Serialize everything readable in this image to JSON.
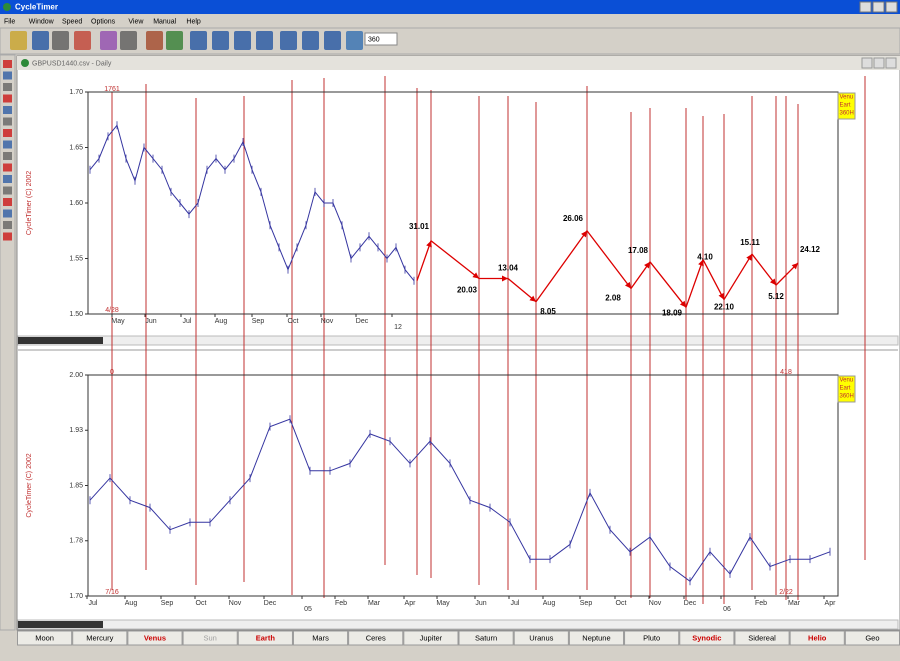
{
  "app": {
    "title": "CycleTimer",
    "menu": [
      "File",
      "Window",
      "Speed",
      "Options",
      "View",
      "Manual",
      "Help"
    ],
    "toolbar_input": "360",
    "tabs": [
      {
        "label": "Moon",
        "color": "#000000"
      },
      {
        "label": "Mercury",
        "color": "#000000"
      },
      {
        "label": "Venus",
        "color": "#cc0000"
      },
      {
        "label": "Sun",
        "color": "#a0a0a0"
      },
      {
        "label": "Earth",
        "color": "#cc0000"
      },
      {
        "label": "Mars",
        "color": "#000000"
      },
      {
        "label": "Ceres",
        "color": "#000000"
      },
      {
        "label": "Jupiter",
        "color": "#000000"
      },
      {
        "label": "Saturn",
        "color": "#000000"
      },
      {
        "label": "Uranus",
        "color": "#000000"
      },
      {
        "label": "Neptune",
        "color": "#000000"
      },
      {
        "label": "Pluto",
        "color": "#000000"
      },
      {
        "label": "Synodic",
        "color": "#cc0000"
      },
      {
        "label": "Sidereal",
        "color": "#000000"
      },
      {
        "label": "Helio",
        "color": "#cc0000"
      },
      {
        "label": "Geo",
        "color": "#000000"
      }
    ]
  },
  "window": {
    "title": "GBPUSD1440.csv - Daily"
  },
  "chart_data": [
    {
      "type": "line",
      "watermark": "CycleTimer (C) 2002",
      "legend_box": [
        "Venu",
        "Eart",
        "360H"
      ],
      "markers": [
        {
          "top": "1761",
          "bottom": "4/28"
        }
      ],
      "x_labels": [
        "May",
        "Jun",
        "Jul",
        "Aug",
        "Sep",
        "Oct",
        "Nov",
        "Dec",
        "12"
      ],
      "color": "#3535a0",
      "values": [
        1.63,
        1.64,
        1.66,
        1.67,
        1.64,
        1.62,
        1.65,
        1.64,
        1.63,
        1.61,
        1.6,
        1.59,
        1.6,
        1.63,
        1.64,
        1.63,
        1.64,
        1.655,
        1.63,
        1.61,
        1.58,
        1.56,
        1.54,
        1.56,
        1.58,
        1.61,
        1.6,
        1.6,
        1.58,
        1.55,
        1.56,
        1.57,
        1.56,
        1.55,
        1.56,
        1.54,
        1.53
      ],
      "ylim": [
        1.5,
        1.7
      ],
      "yticks": [
        {
          "value": 1.5,
          "label": "1.50"
        },
        1.55,
        {
          "value": 1.6,
          "label": "1.60"
        },
        1.65,
        {
          "value": 1.7,
          "label": "1.70"
        }
      ],
      "annotations": [
        {
          "label": "31.01",
          "value": 1.566
        },
        {
          "label": "20.03",
          "value": 1.532
        },
        {
          "label": "13.04",
          "value": 1.532
        },
        {
          "label": "8.05",
          "value": 1.511
        },
        {
          "label": "26.06",
          "value": 1.575
        },
        {
          "label": "2.08",
          "value": 1.523
        },
        {
          "label": "17.08",
          "value": 1.547
        },
        {
          "label": "18.09",
          "value": 1.506
        },
        {
          "label": "4.10",
          "value": 1.549
        },
        {
          "label": "22.10",
          "value": 1.513
        },
        {
          "label": "15.11",
          "value": 1.554
        },
        {
          "label": "5.12",
          "value": 1.526
        },
        {
          "label": "24.12",
          "value": 1.546
        }
      ],
      "annotation_color": "#dd0000"
    },
    {
      "type": "line",
      "watermark": "CycleTimer (C) 2002",
      "legend_box": [
        "Venu",
        "Eart",
        "360H"
      ],
      "markers": [
        {
          "top": "0",
          "bottom": "7/16"
        },
        {
          "top": "418",
          "bottom": "2/22"
        }
      ],
      "x_labels": [
        "Jul",
        "Aug",
        "Sep",
        "Oct",
        "Nov",
        "Dec",
        "05",
        "Feb",
        "Mar",
        "Apr",
        "May",
        "Jun",
        "Jul",
        "Aug",
        "Sep",
        "Oct",
        "Nov",
        "Dec",
        "06",
        "Feb",
        "Mar",
        "Apr"
      ],
      "color": "#3535a0",
      "values": [
        1.83,
        1.86,
        1.83,
        1.82,
        1.79,
        1.8,
        1.8,
        1.83,
        1.86,
        1.93,
        1.94,
        1.87,
        1.87,
        1.88,
        1.92,
        1.91,
        1.88,
        1.91,
        1.88,
        1.83,
        1.82,
        1.8,
        1.75,
        1.75,
        1.77,
        1.84,
        1.79,
        1.76,
        1.78,
        1.74,
        1.72,
        1.76,
        1.73,
        1.78,
        1.74,
        1.75,
        1.75,
        1.76
      ],
      "ylim": [
        1.7,
        2.0
      ],
      "yticks": [
        {
          "value": 1.7,
          "label": "1.70"
        },
        {
          "value": 1.775,
          "label": "1.78"
        },
        {
          "value": 1.85,
          "label": "1.85"
        },
        {
          "value": 1.925,
          "label": "1.93"
        },
        {
          "value": 2.0,
          "label": "2.00"
        }
      ]
    }
  ]
}
